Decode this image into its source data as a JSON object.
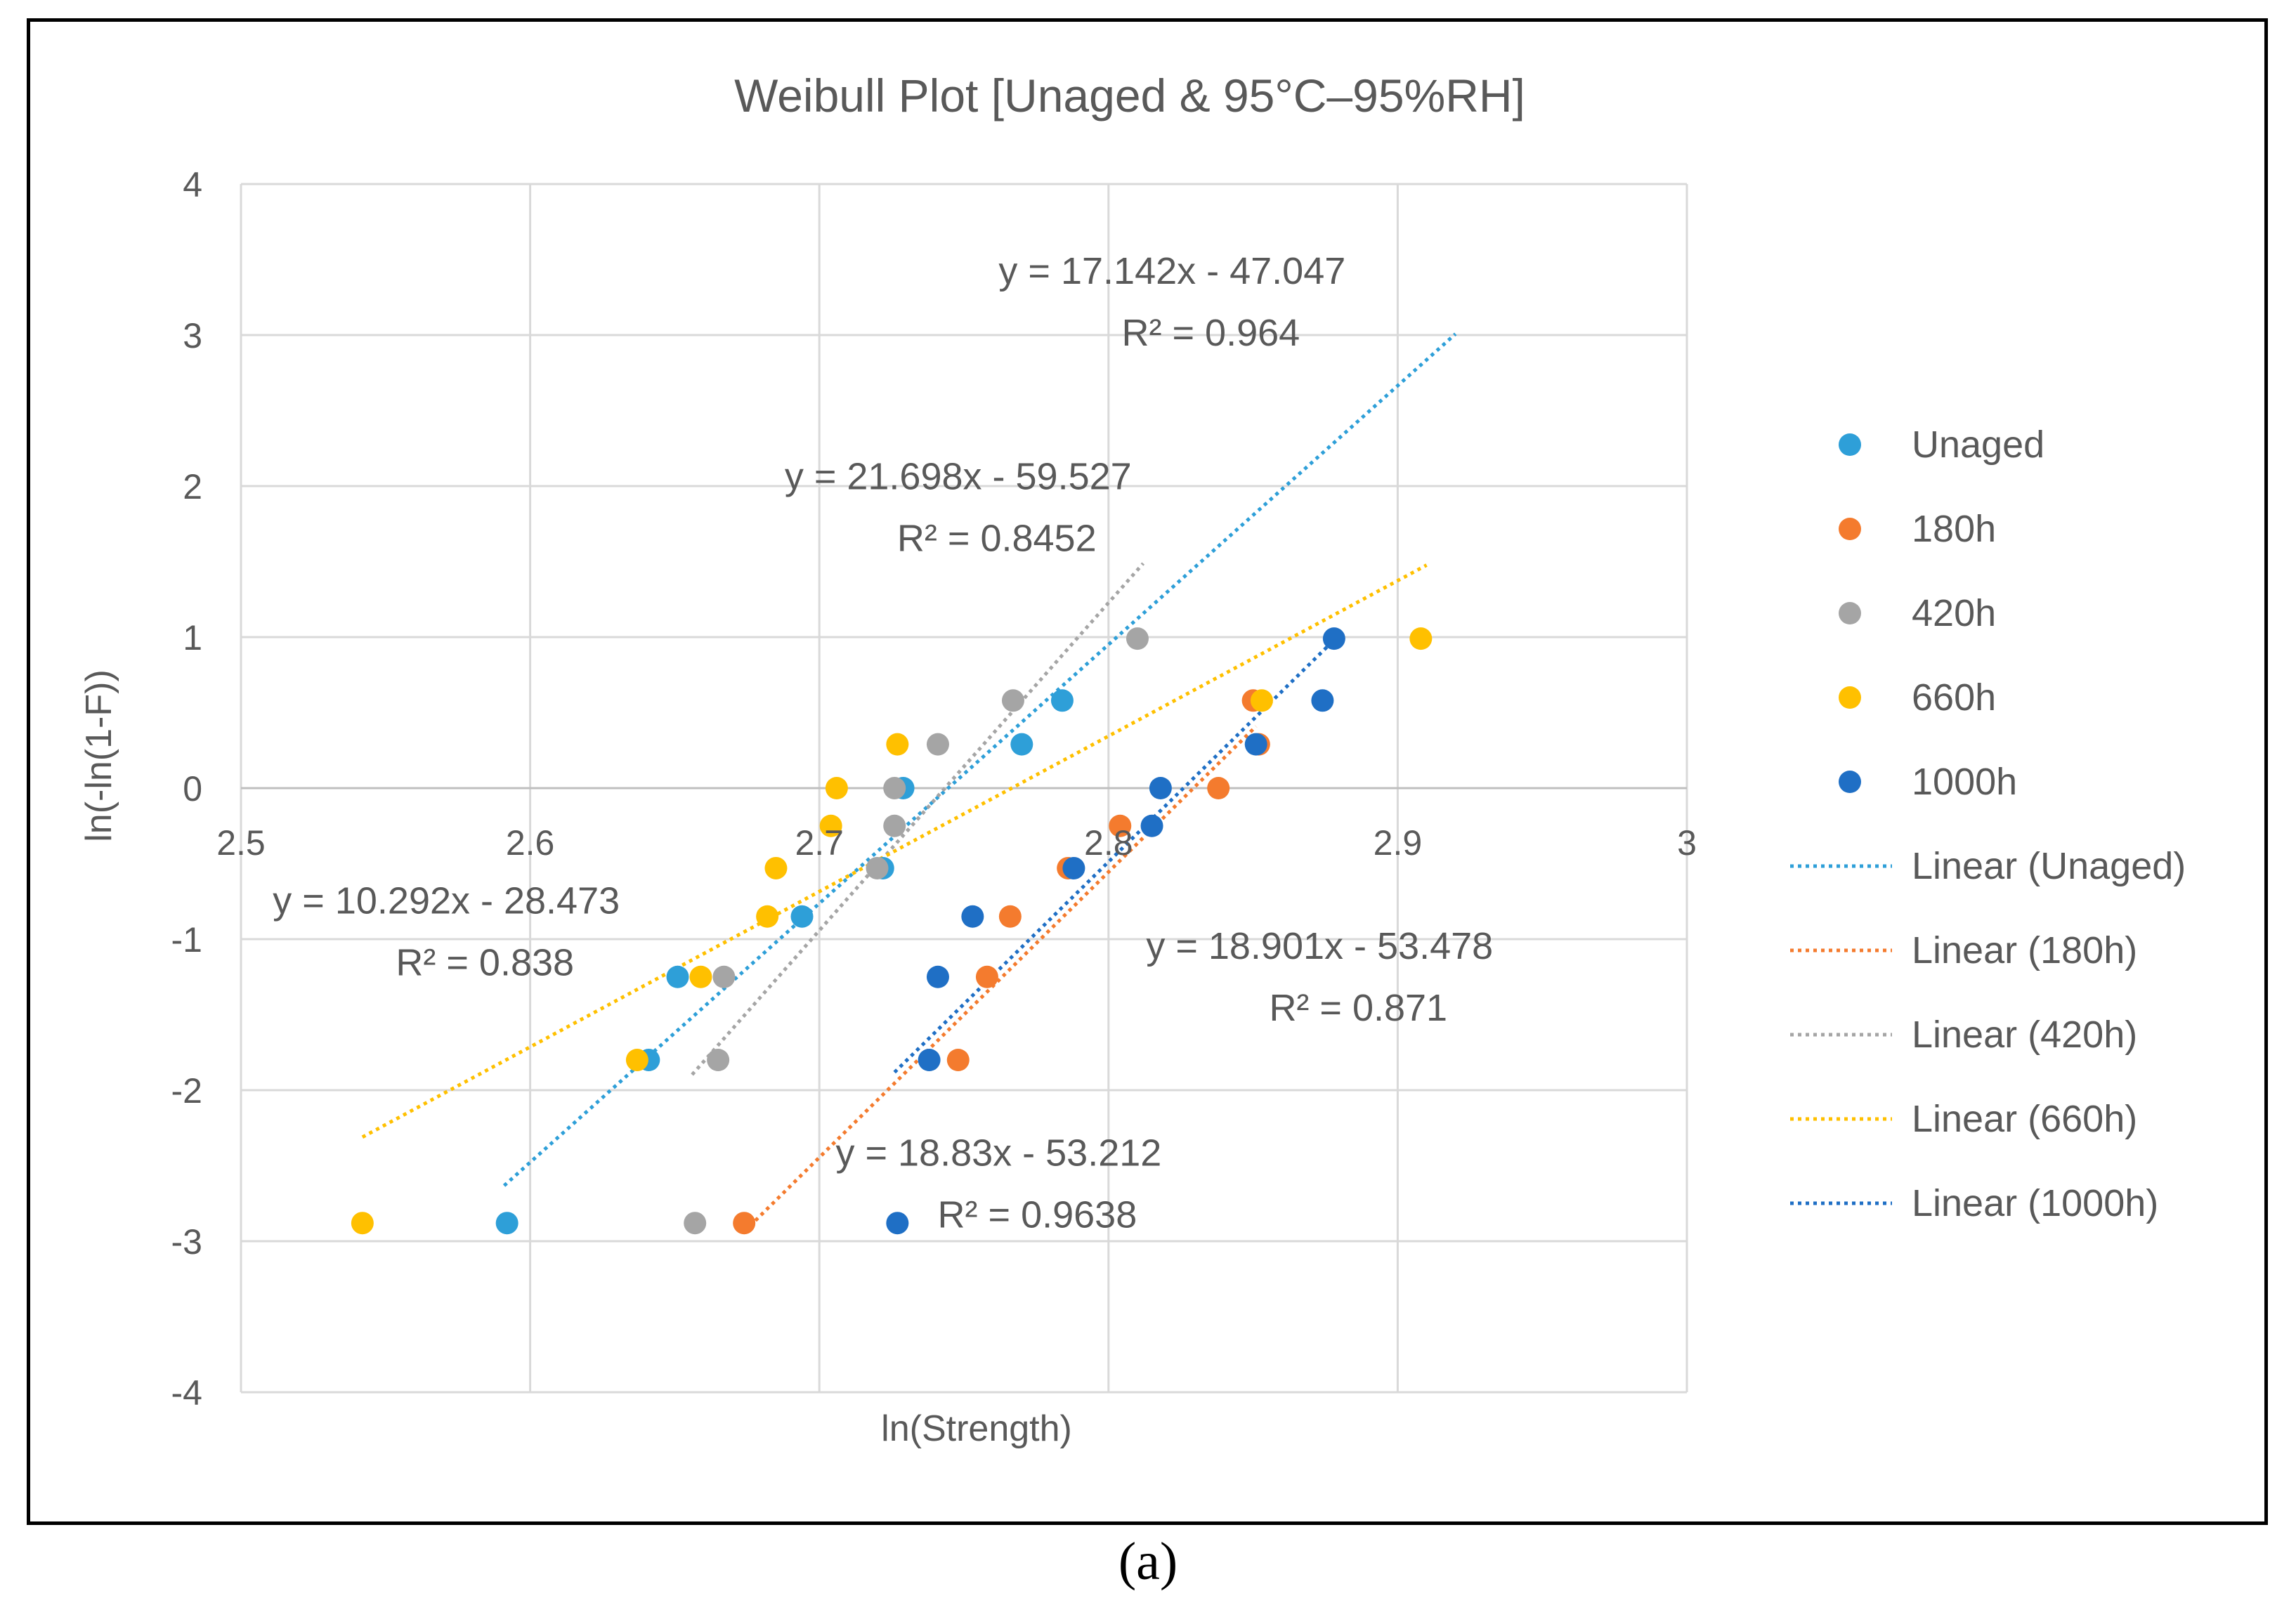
{
  "chart_data": {
    "type": "scatter",
    "title": "Weibull Plot [Unaged & 95°C–95%RH]",
    "xlabel": "ln(Strength)",
    "ylabel": "ln(-ln(1-F))",
    "xlim": [
      2.5,
      3.0
    ],
    "ylim": [
      -4,
      4
    ],
    "x_ticks": [
      "2.5",
      "2.6",
      "2.7",
      "2.8",
      "2.9",
      "3"
    ],
    "y_ticks": [
      "4",
      "3",
      "2",
      "1",
      "0",
      "-1",
      "-2",
      "-3",
      "-4"
    ],
    "grid": true,
    "legend_position": "right",
    "series": [
      {
        "name": "Unaged",
        "color": "#2e9fd8",
        "points": [
          [
            2.592,
            -2.88
          ],
          [
            2.641,
            -1.8
          ],
          [
            2.651,
            -1.25
          ],
          [
            2.694,
            -0.85
          ],
          [
            2.722,
            -0.53
          ],
          [
            2.729,
            0.0
          ],
          [
            2.77,
            0.29
          ],
          [
            2.784,
            0.58
          ]
        ],
        "fit": {
          "slope": 17.142,
          "intercept": -47.047,
          "x_range": [
            2.591,
            2.92
          ],
          "label": "Linear (Unaged)",
          "equation": "y = 17.142x - 47.047",
          "r2": "R² = 0.964",
          "label_anchor": [
            2.822,
            3.34
          ]
        }
      },
      {
        "name": "180h",
        "color": "#f47b2e",
        "points": [
          [
            2.674,
            -2.88
          ],
          [
            2.748,
            -1.8
          ],
          [
            2.758,
            -1.25
          ],
          [
            2.766,
            -0.85
          ],
          [
            2.786,
            -0.53
          ],
          [
            2.804,
            -0.25
          ],
          [
            2.838,
            0.0
          ],
          [
            2.852,
            0.29
          ],
          [
            2.85,
            0.58
          ]
        ],
        "fit": {
          "slope": 18.901,
          "intercept": -53.478,
          "x_range": [
            2.676,
            2.851
          ],
          "label": "Linear (180h)",
          "equation": "y = 18.901x - 53.478",
          "r2": "R² = 0.871",
          "label_anchor": [
            2.873,
            -1.13
          ]
        }
      },
      {
        "name": "420h",
        "color": "#a5a5a5",
        "points": [
          [
            2.657,
            -2.88
          ],
          [
            2.665,
            -1.8
          ],
          [
            2.667,
            -1.25
          ],
          [
            2.72,
            -0.53
          ],
          [
            2.726,
            -0.25
          ],
          [
            2.726,
            0.0
          ],
          [
            2.741,
            0.29
          ],
          [
            2.767,
            0.58
          ],
          [
            2.81,
            0.99
          ]
        ],
        "fit": {
          "slope": 21.698,
          "intercept": -59.527,
          "x_range": [
            2.656,
            2.812
          ],
          "label": "Linear (420h)",
          "equation": "y = 21.698x - 59.527",
          "r2": "R² = 0.8452",
          "label_anchor": [
            2.748,
            1.98
          ]
        }
      },
      {
        "name": "660h",
        "color": "#ffc000",
        "points": [
          [
            2.542,
            -2.88
          ],
          [
            2.637,
            -1.8
          ],
          [
            2.659,
            -1.25
          ],
          [
            2.682,
            -0.85
          ],
          [
            2.685,
            -0.53
          ],
          [
            2.704,
            -0.25
          ],
          [
            2.706,
            0.0
          ],
          [
            2.727,
            0.29
          ],
          [
            2.853,
            0.58
          ],
          [
            2.908,
            0.99
          ]
        ],
        "fit": {
          "slope": 10.292,
          "intercept": -28.473,
          "x_range": [
            2.542,
            2.91
          ],
          "label": "Linear (660h)",
          "equation": "y = 10.292x - 28.473",
          "r2": "R² = 0.838",
          "label_anchor": [
            2.571,
            -0.83
          ]
        }
      },
      {
        "name": "1000h",
        "color": "#1f6fc5",
        "points": [
          [
            2.727,
            -2.88
          ],
          [
            2.738,
            -1.8
          ],
          [
            2.741,
            -1.25
          ],
          [
            2.753,
            -0.85
          ],
          [
            2.788,
            -0.53
          ],
          [
            2.815,
            -0.25
          ],
          [
            2.818,
            0.0
          ],
          [
            2.851,
            0.29
          ],
          [
            2.874,
            0.58
          ],
          [
            2.878,
            0.99
          ]
        ],
        "fit": {
          "slope": 18.83,
          "intercept": -53.212,
          "x_range": [
            2.726,
            2.878
          ],
          "label": "Linear (1000h)",
          "equation": "y = 18.83x - 53.212",
          "r2": "R² = 0.9638",
          "label_anchor": [
            2.762,
            -2.5
          ]
        }
      }
    ]
  },
  "caption": "(a)"
}
